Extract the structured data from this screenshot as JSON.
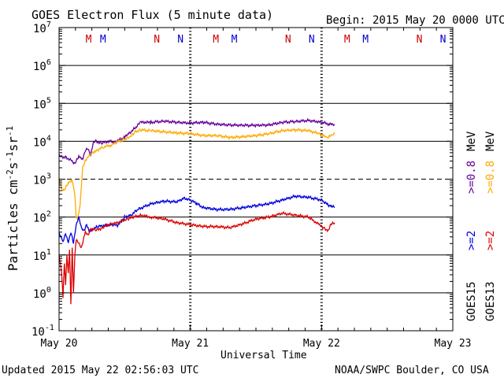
{
  "header": {
    "title": "GOES Electron Flux (5 minute data)",
    "begin": "Begin: 2015 May 20 0000 UTC"
  },
  "footer": {
    "updated": "Updated 2015 May 22 02:56:03 UTC",
    "credit": "NOAA/SWPC Boulder, CO USA"
  },
  "labels": {
    "ylabel_main": "Particles cm",
    "ylabel_sup1": "-2",
    "ylabel_s": "s",
    "ylabel_sup2": "-1",
    "ylabel_sr": "sr",
    "ylabel_sup3": "-1",
    "xlabel": "Universal Time"
  },
  "colors": {
    "goes15_08": "#660099",
    "goes13_08": "#ffaa00",
    "goes15_2": "#0000dd",
    "goes13_2": "#dd0000",
    "marker_m": "#cc0000",
    "marker_n": "#0000cc"
  },
  "legend": {
    "goes15": "GOES15",
    "goes13": "GOES13",
    "sym_2": ">=2",
    "sym_08": ">=0.8",
    "unit": "MeV"
  },
  "markers": {
    "m_label": "M",
    "n_label": "N",
    "items": [
      {
        "type": "M",
        "day": 0.225,
        "color": "#cc0000"
      },
      {
        "type": "M",
        "day": 0.335,
        "color": "#0000cc"
      },
      {
        "type": "N",
        "day": 0.745,
        "color": "#cc0000"
      },
      {
        "type": "N",
        "day": 0.925,
        "color": "#0000cc"
      },
      {
        "type": "M",
        "day": 1.195,
        "color": "#cc0000"
      },
      {
        "type": "M",
        "day": 1.335,
        "color": "#0000cc"
      },
      {
        "type": "N",
        "day": 1.745,
        "color": "#cc0000"
      },
      {
        "type": "N",
        "day": 1.925,
        "color": "#0000cc"
      },
      {
        "type": "M",
        "day": 2.195,
        "color": "#cc0000"
      },
      {
        "type": "M",
        "day": 2.335,
        "color": "#0000cc"
      },
      {
        "type": "N",
        "day": 2.745,
        "color": "#cc0000"
      },
      {
        "type": "N",
        "day": 2.925,
        "color": "#0000cc"
      }
    ]
  },
  "chart_data": {
    "type": "line",
    "x_unit": "days since 2015 May 20 0000 UTC",
    "xlim": [
      0,
      3
    ],
    "ylim_exp": [
      -1,
      7
    ],
    "y_scale": "log",
    "y_ticks": [
      "10^-1",
      "10^0",
      "10^1",
      "10^2",
      "10^3",
      "10^4",
      "10^5",
      "10^6",
      "10^7"
    ],
    "x_ticks": [
      {
        "day": 0,
        "label": "May 20"
      },
      {
        "day": 1,
        "label": "May 21"
      },
      {
        "day": 2,
        "label": "May 22"
      },
      {
        "day": 3,
        "label": "May 23"
      }
    ],
    "threshold_exp": 3,
    "grid": "horizontal at each decade",
    "series": [
      {
        "name": "GOES15 >=0.8 MeV",
        "color": "#660099",
        "points": [
          [
            0,
            3.6
          ],
          [
            0.05,
            3.58
          ],
          [
            0.1,
            3.48
          ],
          [
            0.12,
            3.4
          ],
          [
            0.15,
            3.6
          ],
          [
            0.18,
            3.55
          ],
          [
            0.2,
            3.75
          ],
          [
            0.22,
            3.8
          ],
          [
            0.24,
            3.65
          ],
          [
            0.26,
            3.95
          ],
          [
            0.28,
            4.0
          ],
          [
            0.32,
            3.95
          ],
          [
            0.38,
            4.0
          ],
          [
            0.42,
            3.98
          ],
          [
            0.47,
            4.05
          ],
          [
            0.5,
            4.1
          ],
          [
            0.53,
            4.2
          ],
          [
            0.58,
            4.35
          ],
          [
            0.62,
            4.5
          ],
          [
            0.7,
            4.5
          ],
          [
            0.8,
            4.53
          ],
          [
            0.9,
            4.5
          ],
          [
            1.0,
            4.48
          ],
          [
            1.1,
            4.5
          ],
          [
            1.2,
            4.45
          ],
          [
            1.3,
            4.43
          ],
          [
            1.4,
            4.42
          ],
          [
            1.5,
            4.42
          ],
          [
            1.6,
            4.43
          ],
          [
            1.7,
            4.5
          ],
          [
            1.8,
            4.52
          ],
          [
            1.9,
            4.55
          ],
          [
            2.0,
            4.5
          ],
          [
            2.06,
            4.45
          ],
          [
            2.1,
            4.45
          ]
        ]
      },
      {
        "name": "GOES13 >=0.8 MeV",
        "color": "#ffaa00",
        "points": [
          [
            0,
            3.0
          ],
          [
            0.02,
            2.75
          ],
          [
            0.04,
            2.7
          ],
          [
            0.07,
            2.9
          ],
          [
            0.1,
            3.0
          ],
          [
            0.12,
            2.6
          ],
          [
            0.13,
            2.0
          ],
          [
            0.14,
            1.95
          ],
          [
            0.16,
            2.3
          ],
          [
            0.18,
            3.3
          ],
          [
            0.2,
            3.5
          ],
          [
            0.24,
            3.65
          ],
          [
            0.28,
            3.75
          ],
          [
            0.34,
            3.85
          ],
          [
            0.4,
            3.9
          ],
          [
            0.45,
            4.0
          ],
          [
            0.5,
            4.05
          ],
          [
            0.54,
            4.1
          ],
          [
            0.58,
            4.25
          ],
          [
            0.62,
            4.3
          ],
          [
            0.7,
            4.28
          ],
          [
            0.8,
            4.25
          ],
          [
            0.9,
            4.22
          ],
          [
            1.0,
            4.2
          ],
          [
            1.1,
            4.15
          ],
          [
            1.2,
            4.15
          ],
          [
            1.3,
            4.1
          ],
          [
            1.4,
            4.12
          ],
          [
            1.5,
            4.15
          ],
          [
            1.6,
            4.2
          ],
          [
            1.7,
            4.28
          ],
          [
            1.8,
            4.3
          ],
          [
            1.9,
            4.28
          ],
          [
            1.98,
            4.2
          ],
          [
            2.04,
            4.1
          ],
          [
            2.08,
            4.15
          ],
          [
            2.1,
            4.2
          ]
        ]
      },
      {
        "name": "GOES15 >=2 MeV",
        "color": "#0000dd",
        "points": [
          [
            0,
            1.6
          ],
          [
            0.03,
            1.35
          ],
          [
            0.05,
            1.55
          ],
          [
            0.07,
            1.35
          ],
          [
            0.09,
            1.6
          ],
          [
            0.11,
            1.3
          ],
          [
            0.13,
            1.8
          ],
          [
            0.15,
            2.0
          ],
          [
            0.17,
            1.7
          ],
          [
            0.19,
            1.65
          ],
          [
            0.21,
            1.8
          ],
          [
            0.23,
            1.6
          ],
          [
            0.26,
            1.7
          ],
          [
            0.3,
            1.75
          ],
          [
            0.35,
            1.78
          ],
          [
            0.4,
            1.8
          ],
          [
            0.45,
            1.78
          ],
          [
            0.5,
            2.0
          ],
          [
            0.55,
            2.05
          ],
          [
            0.6,
            2.2
          ],
          [
            0.7,
            2.35
          ],
          [
            0.8,
            2.42
          ],
          [
            0.9,
            2.4
          ],
          [
            0.95,
            2.5
          ],
          [
            1.0,
            2.45
          ],
          [
            1.05,
            2.35
          ],
          [
            1.1,
            2.25
          ],
          [
            1.2,
            2.2
          ],
          [
            1.3,
            2.2
          ],
          [
            1.4,
            2.25
          ],
          [
            1.5,
            2.3
          ],
          [
            1.6,
            2.35
          ],
          [
            1.7,
            2.45
          ],
          [
            1.8,
            2.55
          ],
          [
            1.9,
            2.52
          ],
          [
            2.0,
            2.45
          ],
          [
            2.05,
            2.32
          ],
          [
            2.08,
            2.28
          ],
          [
            2.1,
            2.25
          ]
        ]
      },
      {
        "name": "GOES13 >=2 MeV",
        "color": "#dd0000",
        "points": [
          [
            0,
            1.0
          ],
          [
            0.02,
            0.5
          ],
          [
            0.03,
            -0.1
          ],
          [
            0.04,
            0.8
          ],
          [
            0.05,
            0.2
          ],
          [
            0.06,
            1.0
          ],
          [
            0.07,
            0.5
          ],
          [
            0.08,
            1.1
          ],
          [
            0.09,
            -0.3
          ],
          [
            0.1,
            1.2
          ],
          [
            0.11,
            0.0
          ],
          [
            0.12,
            1.0
          ],
          [
            0.13,
            1.4
          ],
          [
            0.15,
            1.3
          ],
          [
            0.17,
            1.2
          ],
          [
            0.2,
            1.6
          ],
          [
            0.22,
            1.5
          ],
          [
            0.24,
            1.7
          ],
          [
            0.28,
            1.65
          ],
          [
            0.32,
            1.7
          ],
          [
            0.37,
            1.8
          ],
          [
            0.42,
            1.82
          ],
          [
            0.48,
            1.9
          ],
          [
            0.52,
            1.95
          ],
          [
            0.57,
            2.0
          ],
          [
            0.62,
            2.05
          ],
          [
            0.7,
            2.0
          ],
          [
            0.8,
            1.95
          ],
          [
            0.9,
            1.85
          ],
          [
            1.0,
            1.8
          ],
          [
            1.1,
            1.75
          ],
          [
            1.2,
            1.75
          ],
          [
            1.3,
            1.72
          ],
          [
            1.4,
            1.82
          ],
          [
            1.5,
            1.95
          ],
          [
            1.6,
            2.0
          ],
          [
            1.7,
            2.1
          ],
          [
            1.8,
            2.05
          ],
          [
            1.9,
            2.0
          ],
          [
            1.98,
            1.8
          ],
          [
            2.02,
            1.7
          ],
          [
            2.05,
            1.65
          ],
          [
            2.07,
            1.8
          ],
          [
            2.1,
            1.85
          ]
        ]
      }
    ]
  }
}
